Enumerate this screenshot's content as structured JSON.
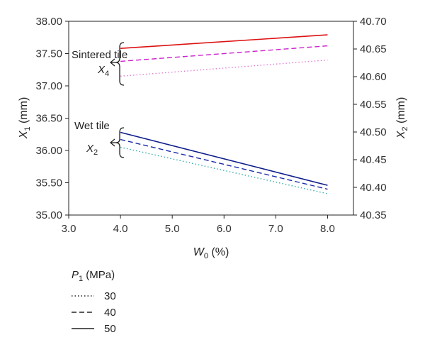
{
  "chart_data": {
    "type": "line",
    "xlabel": {
      "var": "W",
      "sub": "0",
      "unit": " (%)"
    },
    "ylabel_left": {
      "var": "X",
      "sub": "1",
      "unit": " (mm)"
    },
    "ylabel_right": {
      "var": "X",
      "sub": "2",
      "unit": " (mm)"
    },
    "xlim": [
      3.0,
      8.5
    ],
    "ylim_left": [
      35.0,
      38.0
    ],
    "ylim_right": [
      40.35,
      40.7
    ],
    "x_ticks": [
      "3.0",
      "4.0",
      "5.0",
      "6.0",
      "7.0",
      "8.0"
    ],
    "y_left_ticks": [
      "35.00",
      "35.50",
      "36.00",
      "36.50",
      "37.00",
      "37.50",
      "38.00"
    ],
    "y_right_ticks": [
      "40.35",
      "40.40",
      "40.45",
      "40.50",
      "40.55",
      "40.60",
      "40.65",
      "40.70"
    ],
    "grid": false,
    "series": [
      {
        "group": "sintered",
        "pressure": "30",
        "style": "dotted",
        "color": "#e27bd0",
        "x": [
          4.0,
          8.0
        ],
        "y": [
          37.15,
          37.4
        ]
      },
      {
        "group": "sintered",
        "pressure": "40",
        "style": "dashed",
        "color": "#cc22cc",
        "x": [
          4.0,
          8.0
        ],
        "y": [
          37.38,
          37.62
        ]
      },
      {
        "group": "sintered",
        "pressure": "50",
        "style": "solid",
        "color": "#dd1111",
        "x": [
          4.0,
          8.0
        ],
        "y": [
          37.58,
          37.79
        ]
      },
      {
        "group": "wet",
        "pressure": "30",
        "style": "dotted",
        "color": "#33aaaa",
        "x": [
          4.0,
          8.0
        ],
        "y": [
          36.05,
          35.33
        ]
      },
      {
        "group": "wet",
        "pressure": "40",
        "style": "dashed",
        "color": "#1a2aa8",
        "x": [
          4.0,
          8.0
        ],
        "y": [
          36.17,
          35.4
        ]
      },
      {
        "group": "wet",
        "pressure": "50",
        "style": "solid",
        "color": "#0e1d8a",
        "x": [
          4.0,
          8.0
        ],
        "y": [
          36.28,
          35.46
        ]
      }
    ],
    "annotations": {
      "sintered_label": "Sintered tile",
      "sintered_var": {
        "var": "X",
        "sub": "4"
      },
      "wet_label": "Wet tile",
      "wet_var": {
        "var": "X",
        "sub": "2"
      }
    },
    "legend": {
      "title": {
        "var": "P",
        "sub": "1",
        "unit": " (MPa)"
      },
      "placement": "bottom-left",
      "entries": [
        {
          "label": "30",
          "style": "dotted"
        },
        {
          "label": "40",
          "style": "dashed"
        },
        {
          "label": "50",
          "style": "solid"
        }
      ]
    }
  }
}
